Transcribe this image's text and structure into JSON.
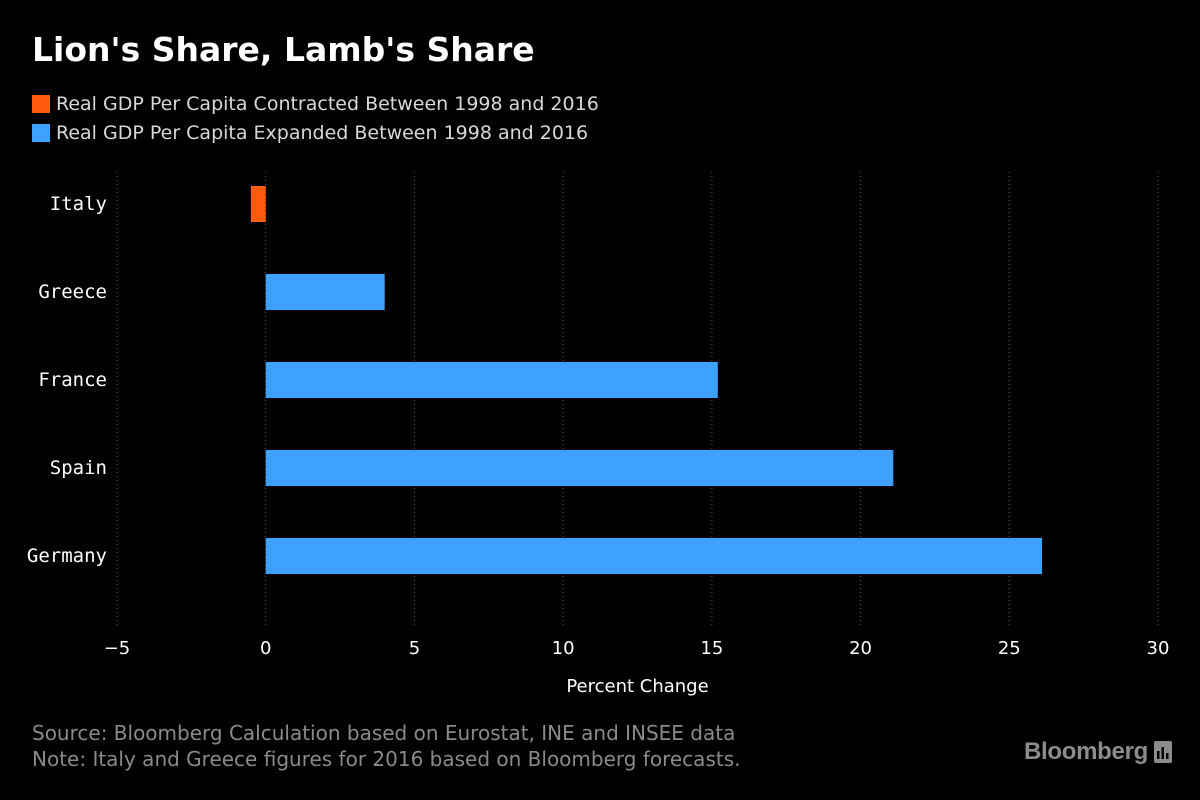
{
  "title": "Lion's Share, Lamb's Share",
  "colors": {
    "background": "#000000",
    "contracted": "#ff5a0f",
    "expanded": "#3fa1ff",
    "text": "#ffffff",
    "muted": "#8a8a8a"
  },
  "legend": [
    {
      "label": "Real GDP Per Capita Contracted Between 1998 and 2016",
      "color": "#ff5a0f"
    },
    {
      "label": "Real GDP Per Capita Expanded Between 1998 and 2016",
      "color": "#3fa1ff"
    }
  ],
  "chart_data": {
    "type": "bar",
    "orientation": "horizontal",
    "categories": [
      "Italy",
      "Greece",
      "France",
      "Spain",
      "Germany"
    ],
    "values": [
      -0.5,
      4.0,
      15.2,
      21.1,
      26.1
    ],
    "xlabel": "Percent Change",
    "xlim": [
      -5,
      30
    ],
    "xticks": [
      -5,
      0,
      5,
      10,
      15,
      20,
      25,
      30
    ],
    "grid": "vertical dotted",
    "legend_position": "top-left"
  },
  "footer": {
    "source": "Source: Bloomberg Calculation based on Eurostat, INE and INSEE data",
    "note": "Note: Italy and Greece figures for 2016 based on Bloomberg forecasts."
  },
  "brand": "Bloomberg"
}
